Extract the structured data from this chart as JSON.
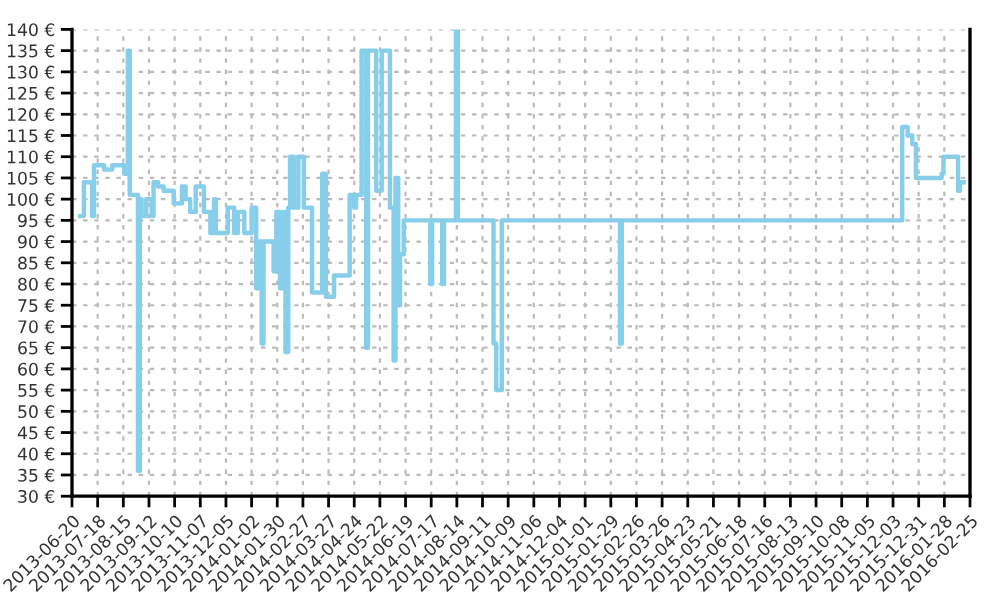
{
  "chart_data": {
    "type": "step",
    "x": [
      "2013-06-29",
      "2013-07-03",
      "2013-07-12",
      "2013-07-14",
      "2013-07-25",
      "2013-08-03",
      "2013-08-16",
      "2013-08-20",
      "2013-08-22",
      "2013-08-31",
      "2013-09-02",
      "2013-09-04",
      "2013-09-09",
      "2013-09-15",
      "2013-09-17",
      "2013-09-22",
      "2013-09-28",
      "2013-10-09",
      "2013-10-18",
      "2013-10-22",
      "2013-10-27",
      "2013-11-02",
      "2013-11-11",
      "2013-11-18",
      "2013-11-22",
      "2013-11-24",
      "2013-12-07",
      "2013-12-14",
      "2013-12-18",
      "2013-12-25",
      "2014-01-02",
      "2014-01-07",
      "2014-01-11",
      "2014-01-13",
      "2014-01-15",
      "2014-01-26",
      "2014-01-29",
      "2014-02-02",
      "2014-02-06",
      "2014-02-08",
      "2014-02-11",
      "2014-02-13",
      "2014-02-17",
      "2014-02-22",
      "2014-02-28",
      "2014-03-09",
      "2014-03-20",
      "2014-03-24",
      "2014-04-02",
      "2014-04-19",
      "2014-04-24",
      "2014-04-26",
      "2014-05-02",
      "2014-05-07",
      "2014-05-09",
      "2014-05-18",
      "2014-05-24",
      "2014-06-02",
      "2014-06-06",
      "2014-06-08",
      "2014-06-11",
      "2014-06-13",
      "2014-06-17",
      "2014-07-16",
      "2014-07-18",
      "2014-07-29",
      "2014-07-31",
      "2014-08-13",
      "2014-08-15",
      "2014-09-23",
      "2014-09-26",
      "2014-10-02",
      "2015-02-08",
      "2015-02-10",
      "2015-12-13",
      "2015-12-19",
      "2015-12-24",
      "2015-12-28",
      "2016-01-25",
      "2016-01-27",
      "2016-02-12",
      "2016-02-14",
      "2016-02-18"
    ],
    "series": [
      {
        "color": "#87ceeb",
        "values": [
          96,
          104,
          96,
          108,
          107,
          108,
          106,
          135,
          101,
          36,
          100,
          96,
          100,
          96,
          104,
          103,
          102,
          99,
          103,
          100,
          97,
          103,
          97,
          92,
          100,
          92,
          98,
          92,
          97,
          92,
          98,
          79,
          90,
          66,
          90,
          83,
          97,
          79,
          97,
          64,
          98,
          110,
          98,
          110,
          98,
          78,
          106,
          77,
          82,
          101,
          98,
          101,
          135,
          65,
          135,
          102,
          135,
          98,
          62,
          105,
          75,
          87,
          95,
          80,
          95,
          80,
          95,
          140,
          95,
          66,
          55,
          95,
          66,
          95,
          117,
          115,
          113,
          105,
          106,
          110,
          102,
          104,
          104
        ]
      }
    ],
    "xlim": [
      "2013-06-20",
      "2016-02-25"
    ],
    "xticks": [
      "2013-06-20",
      "2013-07-18",
      "2013-08-15",
      "2013-09-12",
      "2013-10-10",
      "2013-11-07",
      "2013-12-05",
      "2014-01-02",
      "2014-01-30",
      "2014-02-27",
      "2014-03-27",
      "2014-04-24",
      "2014-05-22",
      "2014-06-19",
      "2014-07-17",
      "2014-08-14",
      "2014-09-11",
      "2014-10-09",
      "2014-11-06",
      "2014-12-04",
      "2015-01-01",
      "2015-01-29",
      "2015-02-26",
      "2015-03-26",
      "2015-04-23",
      "2015-05-21",
      "2015-06-18",
      "2015-07-16",
      "2015-08-13",
      "2015-09-10",
      "2015-10-08",
      "2015-11-05",
      "2015-12-03",
      "2015-12-31",
      "2016-01-28",
      "2016-02-25"
    ],
    "ylim": [
      30,
      140
    ],
    "yticks": [
      {
        "value": 30,
        "label": "30 €"
      },
      {
        "value": 35,
        "label": "35 €"
      },
      {
        "value": 40,
        "label": "40 €"
      },
      {
        "value": 45,
        "label": "45 €"
      },
      {
        "value": 50,
        "label": "50 €"
      },
      {
        "value": 55,
        "label": "55 €"
      },
      {
        "value": 60,
        "label": "60 €"
      },
      {
        "value": 65,
        "label": "65 €"
      },
      {
        "value": 70,
        "label": "70 €"
      },
      {
        "value": 75,
        "label": "75 €"
      },
      {
        "value": 80,
        "label": "80 €"
      },
      {
        "value": 85,
        "label": "85 €"
      },
      {
        "value": 90,
        "label": "90 €"
      },
      {
        "value": 95,
        "label": "95 €"
      },
      {
        "value": 100,
        "label": "100 €"
      },
      {
        "value": 105,
        "label": "105 €"
      },
      {
        "value": 110,
        "label": "110 €"
      },
      {
        "value": 115,
        "label": "115 €"
      },
      {
        "value": 120,
        "label": "120 €"
      },
      {
        "value": 125,
        "label": "125 €"
      },
      {
        "value": 130,
        "label": "130 €"
      },
      {
        "value": 135,
        "label": "135 €"
      },
      {
        "value": 140,
        "label": "140 €"
      }
    ],
    "grid": true,
    "line_style": "solid"
  }
}
